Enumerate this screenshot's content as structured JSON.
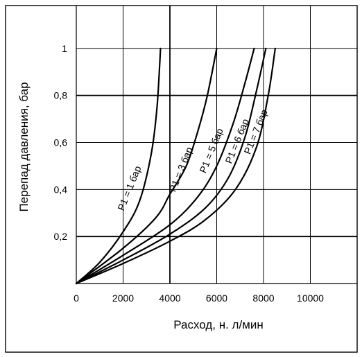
{
  "chart_data": {
    "type": "line",
    "title": "",
    "xlabel": "Расход, н. л/мин",
    "ylabel": "Перепад давления, бар",
    "xlim": [
      0,
      12000
    ],
    "ylim": [
      0,
      1.2
    ],
    "x_ticks": [
      {
        "value": 0,
        "label": "0"
      },
      {
        "value": 2000,
        "label": "2000"
      },
      {
        "value": 4000,
        "label": "4000"
      },
      {
        "value": 6000,
        "label": "6000"
      },
      {
        "value": 8000,
        "label": "8000"
      },
      {
        "value": 10000,
        "label": "10000"
      }
    ],
    "y_ticks": [
      {
        "value": 0.2,
        "label": "0,2"
      },
      {
        "value": 0.4,
        "label": "0,4"
      },
      {
        "value": 0.6,
        "label": "0,6"
      },
      {
        "value": 0.8,
        "label": "0,8"
      },
      {
        "value": 1.0,
        "label": "1"
      }
    ],
    "grid": true,
    "major_gridlines": {
      "x": [
        4000
      ],
      "y": [
        0.2,
        0.8
      ]
    },
    "series": [
      {
        "name": "P1 = 1 бар",
        "label_position": [
          2400,
          0.4
        ],
        "points": [
          [
            0,
            0
          ],
          [
            1000,
            0.09
          ],
          [
            2000,
            0.22
          ],
          [
            2700,
            0.35
          ],
          [
            3200,
            0.55
          ],
          [
            3450,
            0.75
          ],
          [
            3600,
            1.0
          ]
        ]
      },
      {
        "name": "P1 = 3 бар",
        "label_position": [
          4600,
          0.48
        ],
        "points": [
          [
            0,
            0
          ],
          [
            2000,
            0.15
          ],
          [
            3400,
            0.28
          ],
          [
            4000,
            0.38
          ],
          [
            4700,
            0.5
          ],
          [
            5200,
            0.65
          ],
          [
            5600,
            0.8
          ],
          [
            6000,
            1.0
          ]
        ]
      },
      {
        "name": "P1 = 5 бар",
        "label_position": [
          5900,
          0.56
        ],
        "points": [
          [
            0,
            0
          ],
          [
            2000,
            0.12
          ],
          [
            4000,
            0.25
          ],
          [
            5200,
            0.37
          ],
          [
            6000,
            0.5
          ],
          [
            6700,
            0.68
          ],
          [
            7200,
            0.85
          ],
          [
            7600,
            1.0
          ]
        ]
      },
      {
        "name": "P1 = 6 бар",
        "label_position": [
          7000,
          0.6
        ],
        "points": [
          [
            0,
            0
          ],
          [
            2000,
            0.1
          ],
          [
            4000,
            0.21
          ],
          [
            5500,
            0.32
          ],
          [
            6500,
            0.45
          ],
          [
            7200,
            0.62
          ],
          [
            7700,
            0.82
          ],
          [
            8100,
            1.0
          ]
        ]
      },
      {
        "name": "P1 = 7 бар",
        "label_position": [
          7800,
          0.64
        ],
        "points": [
          [
            0,
            0
          ],
          [
            2000,
            0.085
          ],
          [
            4000,
            0.18
          ],
          [
            5500,
            0.27
          ],
          [
            6800,
            0.4
          ],
          [
            7700,
            0.58
          ],
          [
            8200,
            0.8
          ],
          [
            8500,
            1.0
          ]
        ]
      }
    ]
  }
}
